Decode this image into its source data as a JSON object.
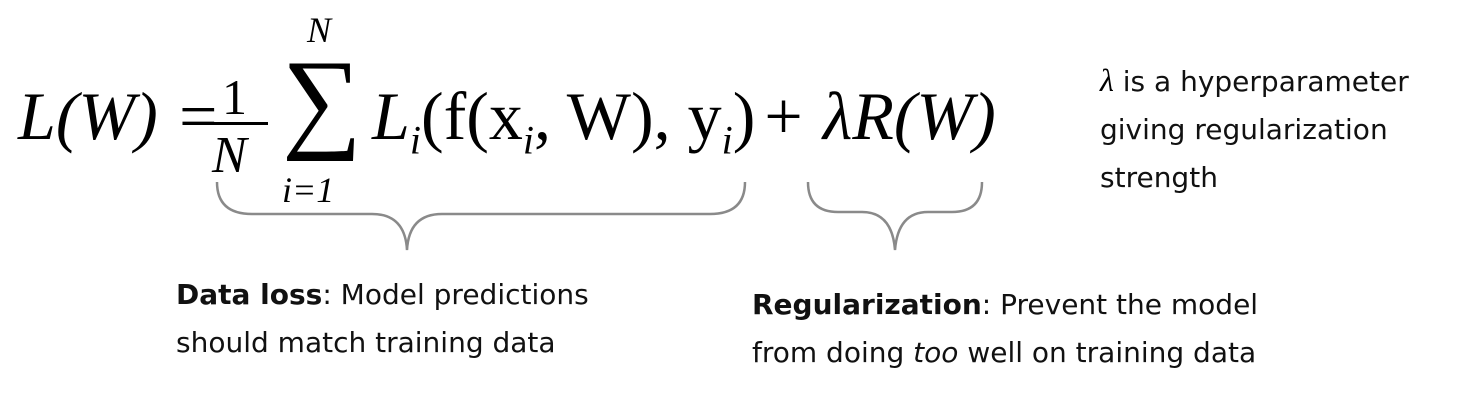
{
  "equation": {
    "lhs": "L(W) =",
    "frac_num": "1",
    "frac_den": "N",
    "sum_upper": "N",
    "sum_lower": "i=1",
    "sum_symbol": "∑",
    "loss_term": "L",
    "loss_sub": "i",
    "loss_args_a": "(f(x",
    "loss_args_sub1": "i",
    "loss_args_b": ", W), y",
    "loss_args_sub2": "i",
    "loss_args_c": ")",
    "reg_term": "+ λR(W)"
  },
  "hyperparam_note": {
    "lambda": "λ",
    "line1": " is a hyperparameter",
    "line2": "giving regularization",
    "line3": "strength"
  },
  "data_loss": {
    "title": "Data loss",
    "line1": ": Model predictions",
    "line2": "should match training data"
  },
  "regularization": {
    "title": "Regularization",
    "line1": ": Prevent the model",
    "line2_a": "from doing ",
    "line2_em": "too",
    "line2_b": " well on training data"
  }
}
